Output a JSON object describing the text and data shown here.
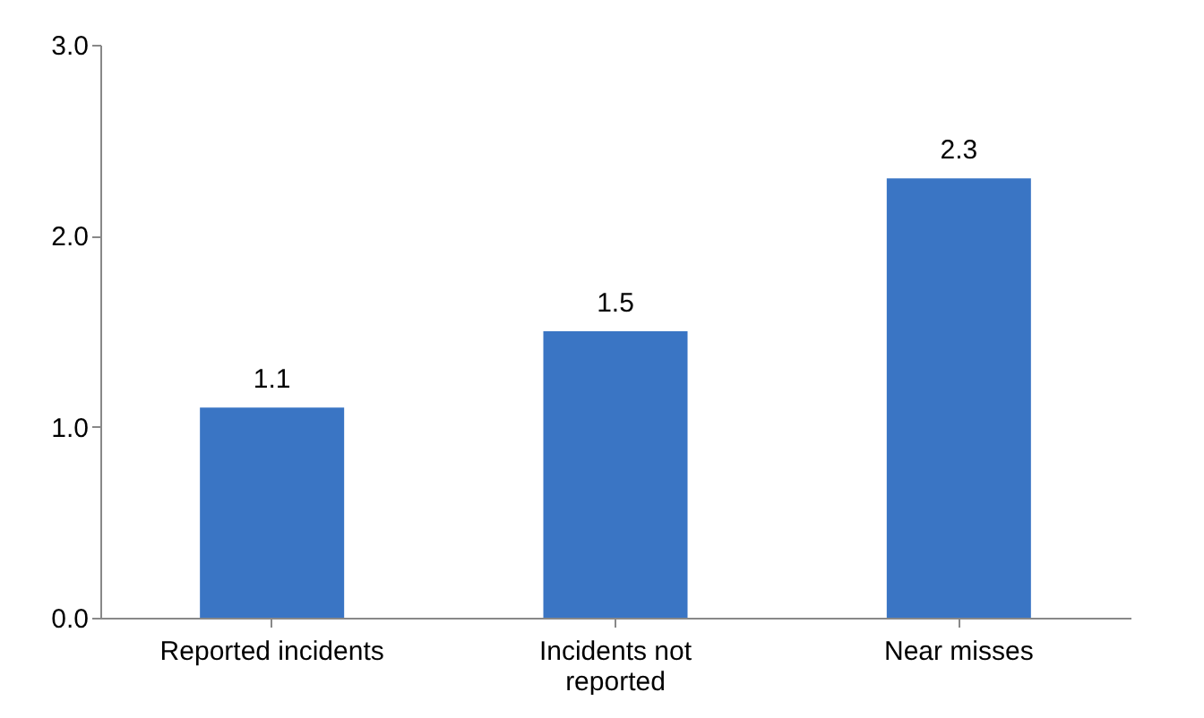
{
  "chart_data": {
    "type": "bar",
    "categories": [
      "Reported incidents",
      "Incidents not reported",
      "Near misses"
    ],
    "values": [
      1.1,
      1.5,
      2.3
    ],
    "color": "#3a75c4",
    "ylim": [
      0,
      3
    ],
    "yticks": [
      {
        "value": 0,
        "label": "0.0"
      },
      {
        "value": 1,
        "label": "1.0"
      },
      {
        "value": 2,
        "label": "2.0"
      },
      {
        "value": 3,
        "label": "3.0"
      }
    ],
    "data_labels": true,
    "grid": false
  }
}
